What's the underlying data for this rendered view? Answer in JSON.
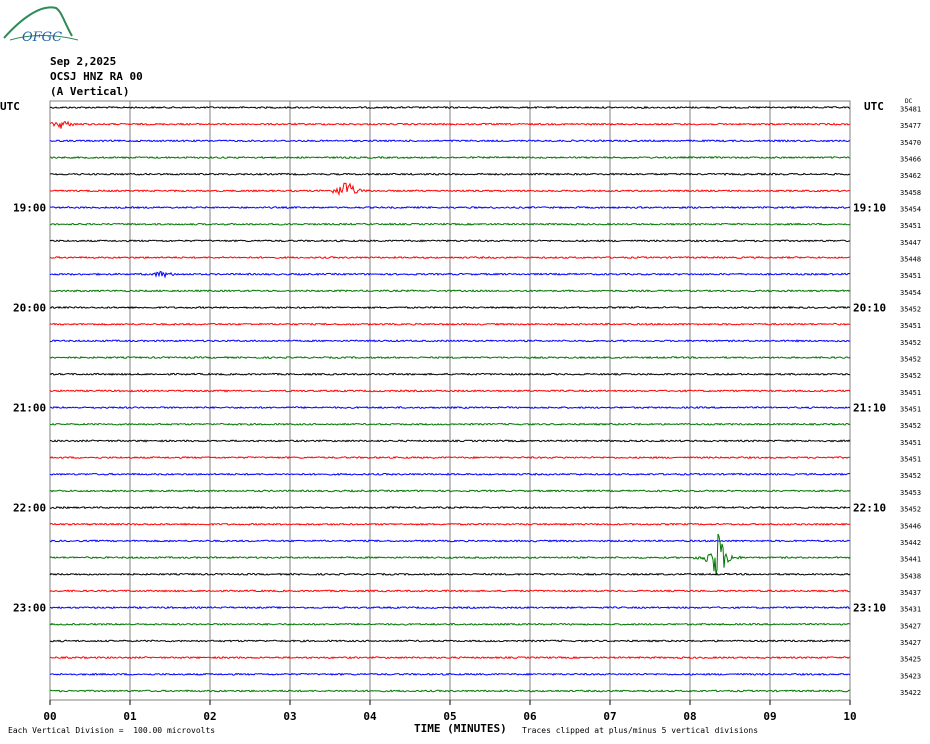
{
  "header": {
    "logo_text": "OFGC",
    "date": "Sep 2,2025",
    "station": "OCSJ HNZ RA 00",
    "component": "(A Vertical)"
  },
  "left_axis_label": "UTC",
  "right_axis_label": "UTC",
  "dc_label": "DC",
  "footer": {
    "scale_note": "Each Vertical Division =  100.00 microvolts",
    "clip_note": "Traces clipped at plus/minus 5 vertical divisions",
    "x_title": "TIME (MINUTES)"
  },
  "colors": {
    "black": "#000000",
    "red": "#ff0000",
    "blue": "#0000ff",
    "green": "#007700",
    "grid": "#808080"
  },
  "chart_data": {
    "type": "line",
    "title": "Sep 2,2025 OCSJ HNZ RA 00 (A Vertical)",
    "xlabel": "TIME (MINUTES)",
    "xlim": [
      0,
      10
    ],
    "x_ticks": [
      "00",
      "01",
      "02",
      "03",
      "04",
      "05",
      "06",
      "07",
      "08",
      "09",
      "10"
    ],
    "trace_colors": [
      "black",
      "red",
      "blue",
      "green"
    ],
    "left_hour_labels": [
      {
        "row": 6,
        "text": "19:00"
      },
      {
        "row": 12,
        "text": "20:00"
      },
      {
        "row": 18,
        "text": "21:00"
      },
      {
        "row": 24,
        "text": "22:00"
      },
      {
        "row": 30,
        "text": "23:00"
      }
    ],
    "right_hour_labels": [
      {
        "row": 6,
        "text": "19:10"
      },
      {
        "row": 12,
        "text": "20:10"
      },
      {
        "row": 18,
        "text": "21:10"
      },
      {
        "row": 24,
        "text": "22:10"
      },
      {
        "row": 30,
        "text": "23:10"
      }
    ],
    "dc_offsets": [
      35481,
      35477,
      35470,
      35466,
      35462,
      35458,
      35454,
      35451,
      35447,
      35448,
      35451,
      35454,
      35452,
      35451,
      35452,
      35452,
      35452,
      35451,
      35451,
      35452,
      35451,
      35451,
      35452,
      35453,
      35452,
      35446,
      35442,
      35441,
      35438,
      35437,
      35431,
      35427,
      35427,
      35425,
      35423,
      35422
    ],
    "events": [
      {
        "row": 1,
        "minute": 0.15,
        "amplitude": 0.5
      },
      {
        "row": 5,
        "minute": 3.7,
        "amplitude": 1.3
      },
      {
        "row": 10,
        "minute": 1.4,
        "amplitude": 0.35
      },
      {
        "row": 27,
        "minute": 8.35,
        "amplitude": 3.0
      }
    ]
  }
}
